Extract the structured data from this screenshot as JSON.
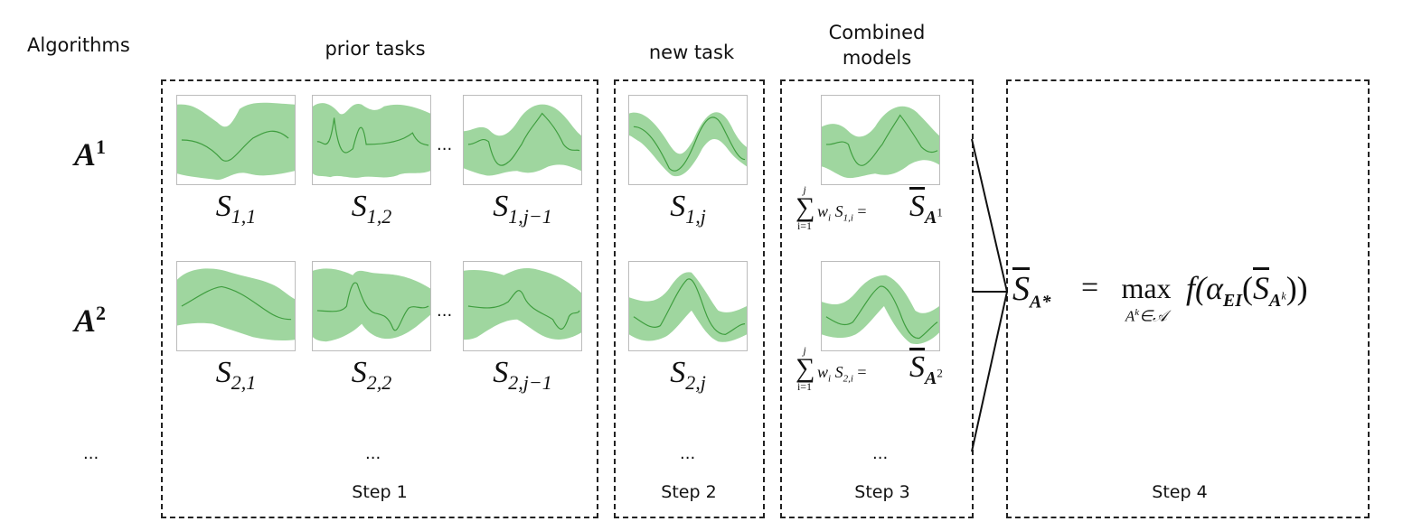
{
  "headers": {
    "algorithms": "Algorithms",
    "prior_tasks": "prior tasks",
    "new_task": "new task",
    "combined_line1": "Combined",
    "combined_line2": "models"
  },
  "steps": [
    "Step 1",
    "Step 2",
    "Step 3",
    "Step 4"
  ],
  "ellipsis": "...",
  "algorithms": [
    {
      "base": "A",
      "sup": "1"
    },
    {
      "base": "A",
      "sup": "2"
    }
  ],
  "surrogates": {
    "symbol": "S",
    "row1": [
      "1,1",
      "1,2",
      "1,j−1",
      "1,j"
    ],
    "row2": [
      "2,1",
      "2,2",
      "2,j−1",
      "2,j"
    ]
  },
  "combined": [
    {
      "sum_top": "j",
      "sum_bottom": "i=1",
      "term": "w",
      "term_sub": "i",
      "s_sub": "1,i",
      "result_sub": "A",
      "result_sup": "1"
    },
    {
      "sum_top": "j",
      "sum_bottom": "i=1",
      "term": "w",
      "term_sub": "i",
      "s_sub": "2,i",
      "result_sub": "A",
      "result_sup": "2"
    }
  ],
  "formula": {
    "lhs_sub": "A*",
    "max": "max",
    "max_sub": "A",
    "max_sub_sup": "k",
    "max_set": "∈𝒜",
    "rest": "f(α",
    "alpha_sub": "EI",
    "inner_sub": "A",
    "inner_sup": "k",
    "close": "))"
  },
  "colors": {
    "band": "#9fd69f",
    "line": "#3f9e3f",
    "border": "#222222"
  }
}
